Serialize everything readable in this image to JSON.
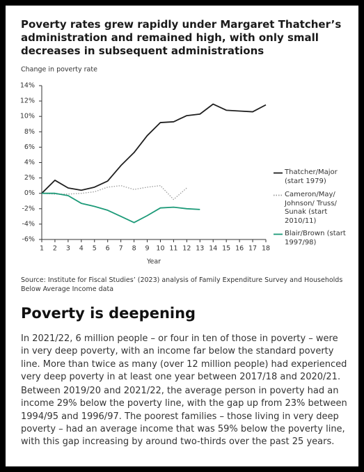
{
  "chart_data": {
    "type": "line",
    "title": "Poverty rates grew rapidly under Margaret Thatcher’s administration and remained high, with only small decreases in subsequent administrations",
    "y_label": "Change in poverty rate",
    "x_label": "Year",
    "x": [
      1,
      2,
      3,
      4,
      5,
      6,
      7,
      8,
      9,
      10,
      11,
      12,
      13,
      14,
      15,
      16,
      17,
      18
    ],
    "xlim": [
      1,
      18
    ],
    "xticks": [
      1,
      2,
      3,
      4,
      5,
      6,
      7,
      8,
      9,
      10,
      11,
      12,
      13,
      14,
      15,
      16,
      17,
      18
    ],
    "ylim": [
      -6,
      14
    ],
    "yticks": [
      {
        "value": 14,
        "label": "14%"
      },
      {
        "value": 12,
        "label": "12%"
      },
      {
        "value": 10,
        "label": "10%"
      },
      {
        "value": 8,
        "label": "8%"
      },
      {
        "value": 6,
        "label": "6%"
      },
      {
        "value": 4,
        "label": "4%"
      },
      {
        "value": 2,
        "label": "2%"
      },
      {
        "value": 0,
        "label": "0%"
      },
      {
        "value": -2,
        "label": "-2%"
      },
      {
        "value": -4,
        "label": "-4%"
      },
      {
        "value": -6,
        "label": "-6%"
      }
    ],
    "legend_position": "right",
    "series": [
      {
        "name": "Thatcher/Major (start 1979)",
        "color": "#1f1f1f",
        "style": "solid",
        "values": [
          0,
          1.7,
          0.7,
          0.4,
          0.8,
          1.6,
          3.6,
          5.3,
          7.5,
          9.2,
          9.3,
          10.1,
          10.3,
          11.6,
          10.8,
          10.7,
          10.6,
          11.5
        ]
      },
      {
        "name": "Cameron/May/ Johnson/ Truss/ Sunak (start 2010/11)",
        "color": "#9a9a9a",
        "style": "dotted",
        "values": [
          0,
          -0.1,
          -0.1,
          0,
          0.2,
          0.8,
          1.0,
          0.5,
          0.8,
          1.0,
          -0.8,
          0.7,
          null,
          null,
          null,
          null,
          null,
          null
        ]
      },
      {
        "name": "Blair/Brown (start 1997/98)",
        "color": "#1c9a78",
        "style": "solid",
        "values": [
          0,
          0,
          -0.3,
          -1.3,
          -1.7,
          -2.2,
          -3.0,
          -3.8,
          -2.9,
          -1.9,
          -1.8,
          -2.0,
          -2.1,
          null,
          null,
          null,
          null,
          null
        ]
      }
    ],
    "source": "Source: Institute for Fiscal Studies’ (2023) analysis of Family Expenditure Survey and Households Below Average Income data"
  },
  "document": {
    "heading": "Poverty is deepening",
    "paragraphs": [
      "In 2021/22, 6 million people – or four in ten of those in poverty – were in very deep poverty, with an income far below the standard poverty line. More than twice as many (over 12 million people) had experienced very deep poverty in at least one year between 2017/18 and 2020/21.",
      "Between 2019/20 and 2021/22, the average person in poverty had an income 29% below the poverty line, with the gap up from 23% between 1994/95 and 1996/97. The poorest families – those living in very deep poverty – had an average income that was 59% below the poverty line, with this gap increasing by around two-thirds over the past 25 years."
    ]
  }
}
